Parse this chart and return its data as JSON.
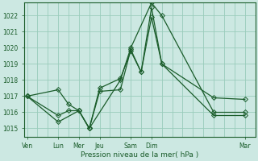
{
  "bg_color": "#cce8e2",
  "grid_color": "#99ccbb",
  "line_color": "#1a5c2a",
  "ylim": [
    1014.5,
    1022.8
  ],
  "yticks": [
    1015,
    1016,
    1017,
    1018,
    1019,
    1020,
    1021,
    1022
  ],
  "xlabel": "Pression niveau de la mer( hPa )",
  "x_named_labels": [
    "Ven",
    "Lun",
    "Mer",
    "Jeu",
    "Sam",
    "Dim",
    "Mar"
  ],
  "x_named_pos": [
    0,
    6,
    10,
    14,
    20,
    24,
    42
  ],
  "xlim": [
    -0.5,
    44
  ],
  "grid_x_step": 2,
  "series1_x": [
    0,
    6,
    8,
    10,
    12,
    14,
    18,
    20,
    22,
    24,
    26,
    36,
    42
  ],
  "series1_y": [
    1017.0,
    1015.8,
    1016.1,
    1016.1,
    1015.0,
    1017.3,
    1017.4,
    1019.9,
    1018.5,
    1022.5,
    1019.0,
    1015.8,
    1015.8
  ],
  "series2_x": [
    0,
    6,
    8,
    10,
    12,
    14,
    18,
    20,
    22,
    24,
    26,
    36,
    42
  ],
  "series2_y": [
    1017.0,
    1017.4,
    1016.5,
    1016.1,
    1015.0,
    1017.5,
    1018.1,
    1019.8,
    1018.5,
    1021.9,
    1019.0,
    1016.9,
    1016.8
  ],
  "series3_x": [
    0,
    6,
    10,
    12,
    18,
    20,
    24,
    26,
    36,
    42
  ],
  "series3_y": [
    1017.0,
    1015.4,
    1016.1,
    1015.0,
    1018.0,
    1020.0,
    1022.8,
    1022.0,
    1016.0,
    1016.0
  ]
}
